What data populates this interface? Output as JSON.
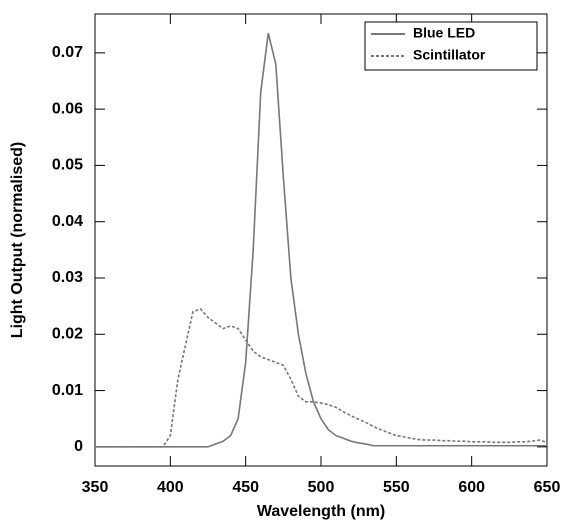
{
  "chart_data": {
    "type": "line",
    "xlabel": "Wavelength (nm)",
    "ylabel": "Light Output (normalised)",
    "x": [
      350,
      355,
      360,
      365,
      370,
      375,
      380,
      385,
      390,
      395,
      400,
      405,
      410,
      415,
      420,
      425,
      430,
      435,
      440,
      445,
      450,
      455,
      460,
      465,
      470,
      475,
      480,
      485,
      490,
      495,
      500,
      505,
      510,
      515,
      520,
      525,
      530,
      535,
      540,
      545,
      550,
      555,
      560,
      565,
      570,
      575,
      580,
      585,
      590,
      595,
      600,
      605,
      610,
      615,
      620,
      625,
      630,
      635,
      640,
      645,
      650
    ],
    "series": [
      {
        "name": "Blue LED",
        "color": "#777777",
        "linestyle": "solid",
        "values": [
          0,
          0,
          0,
          0,
          0,
          0,
          0,
          0,
          0,
          0,
          0,
          0,
          0,
          0,
          0,
          0,
          0.0005,
          0.001,
          0.002,
          0.005,
          0.015,
          0.035,
          0.063,
          0.0735,
          0.068,
          0.048,
          0.03,
          0.02,
          0.013,
          0.008,
          0.005,
          0.003,
          0.002,
          0.0015,
          0.001,
          0.0007,
          0.0005,
          0.0002,
          0.0002,
          0.0002,
          0.0002,
          0.0002,
          0.0002,
          0.0002,
          0.0002,
          0.0002,
          0.0002,
          0.0002,
          0.0002,
          0.0002,
          0.0002,
          0.0002,
          0.0002,
          0.0002,
          0.0002,
          0.0002,
          0.0002,
          0.0002,
          0.0002,
          0.0002,
          0.0002
        ]
      },
      {
        "name": "Scintillator",
        "color": "#777777",
        "linestyle": "dotted",
        "values": [
          0,
          0,
          0,
          0,
          0,
          0,
          0,
          0,
          0,
          0,
          0.002,
          0.012,
          0.018,
          0.024,
          0.0245,
          0.023,
          0.022,
          0.021,
          0.0215,
          0.021,
          0.019,
          0.017,
          0.016,
          0.0155,
          0.015,
          0.0145,
          0.012,
          0.009,
          0.008,
          0.008,
          0.0078,
          0.0075,
          0.007,
          0.0062,
          0.0055,
          0.0049,
          0.0043,
          0.0036,
          0.003,
          0.0025,
          0.002,
          0.0018,
          0.0015,
          0.0013,
          0.0012,
          0.0012,
          0.0011,
          0.0011,
          0.001,
          0.001,
          0.0009,
          0.0009,
          0.0009,
          0.0008,
          0.0008,
          0.0008,
          0.0009,
          0.0009,
          0.001,
          0.0012,
          0.0008
        ]
      }
    ],
    "xlim": [
      350,
      650
    ],
    "xticks": [
      350,
      400,
      450,
      500,
      550,
      600,
      650
    ],
    "ylim": [
      -0.0034,
      0.0769
    ],
    "yticks": [
      0,
      0.01,
      0.02,
      0.03,
      0.04,
      0.05,
      0.06,
      0.07
    ],
    "legend": "upper right"
  }
}
